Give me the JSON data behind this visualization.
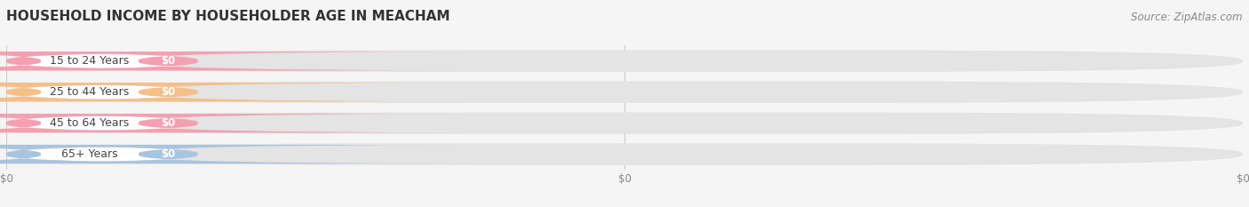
{
  "title": "HOUSEHOLD INCOME BY HOUSEHOLDER AGE IN MEACHAM",
  "source": "Source: ZipAtlas.com",
  "categories": [
    "15 to 24 Years",
    "25 to 44 Years",
    "45 to 64 Years",
    "65+ Years"
  ],
  "values": [
    0,
    0,
    0,
    0
  ],
  "bar_colors": [
    "#f4a0b0",
    "#f5bf87",
    "#f4a0b0",
    "#a8c4e0"
  ],
  "background_color": "#f5f5f5",
  "bar_bg_color": "#e4e4e4",
  "xlim_max": 1.0,
  "xtick_positions": [
    0.0,
    0.5,
    1.0
  ],
  "xtick_labels": [
    "$0",
    "$0",
    "$0"
  ],
  "title_fontsize": 11,
  "source_fontsize": 8.5,
  "bar_label_fontsize": 9,
  "val_label_fontsize": 8.5
}
